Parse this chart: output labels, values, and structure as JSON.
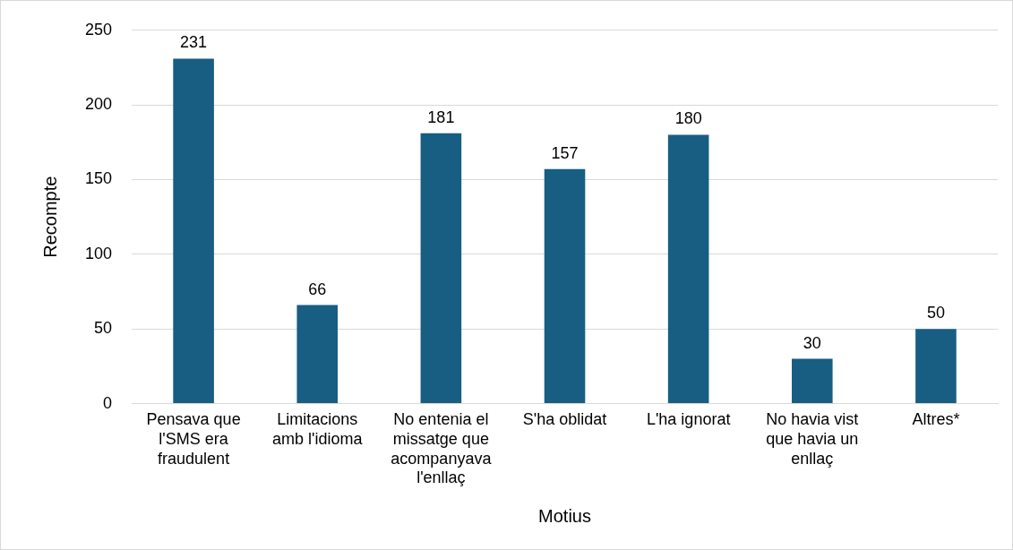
{
  "chart_data": {
    "type": "bar",
    "xlabel": "Motius",
    "ylabel": "Recompte",
    "categories": [
      "Pensava que l'SMS era fraudulent",
      "Limitacions amb l'idioma",
      "No entenia el missatge que acompanyava l'enllaç",
      "S'ha oblidat",
      "L'ha ignorat",
      "No havia vist que havia un enllaç",
      "Altres*"
    ],
    "values": [
      231,
      66,
      181,
      157,
      180,
      30,
      50
    ],
    "color": "#175e82",
    "ylim": [
      0,
      250
    ],
    "yticks": [
      0,
      50,
      100,
      150,
      200,
      250
    ],
    "grid": "y",
    "legend": false,
    "data_labels": true
  }
}
